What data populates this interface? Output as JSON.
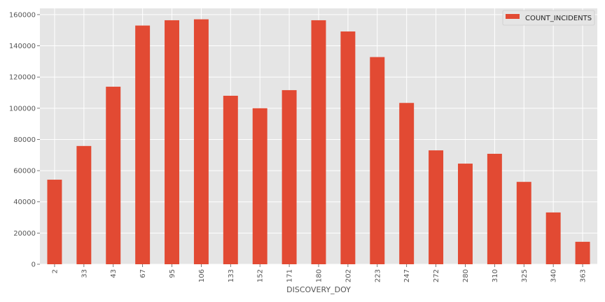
{
  "chart_data": {
    "type": "bar",
    "categories": [
      "2",
      "33",
      "43",
      "67",
      "95",
      "106",
      "133",
      "152",
      "171",
      "180",
      "202",
      "223",
      "247",
      "272",
      "280",
      "310",
      "325",
      "340",
      "363"
    ],
    "series": [
      {
        "name": "COUNT_INCIDENTS",
        "values": [
          54200,
          75800,
          113800,
          153000,
          156400,
          157000,
          108000,
          100000,
          111600,
          156400,
          149200,
          132800,
          103400,
          73000,
          64500,
          70800,
          52800,
          33200,
          14400
        ]
      }
    ],
    "title": "",
    "xlabel": "DISCOVERY_DOY",
    "ylabel": "",
    "ylim": [
      0,
      164000
    ],
    "yticks": [
      0,
      20000,
      40000,
      60000,
      80000,
      100000,
      120000,
      140000,
      160000
    ],
    "grid": true,
    "legend_position": "top-right"
  },
  "colors": {
    "bar": "#e24a33",
    "plot_background": "#e5e5e5",
    "grid": "#ffffff",
    "text": "#555555"
  }
}
